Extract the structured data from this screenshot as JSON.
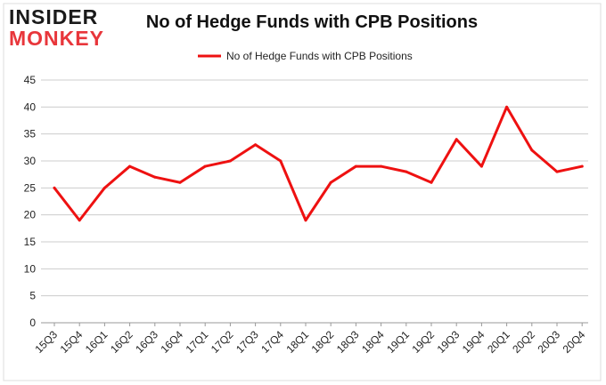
{
  "logo": {
    "line1": "INSIDER",
    "line2": "MONKEY"
  },
  "colors": {
    "series": "#ee1111",
    "grid": "#cccccc",
    "logo_red": "#e8363b"
  },
  "chart_data": {
    "type": "line",
    "title": "No of Hedge Funds with CPB Positions",
    "xlabel": "",
    "ylabel": "",
    "ylim": [
      0,
      45
    ],
    "yticks": [
      0,
      5,
      10,
      15,
      20,
      25,
      30,
      35,
      40,
      45
    ],
    "grid": true,
    "legend_position": "top-center",
    "categories": [
      "15Q3",
      "15Q4",
      "16Q1",
      "16Q2",
      "16Q3",
      "16Q4",
      "17Q1",
      "17Q2",
      "17Q3",
      "17Q4",
      "18Q1",
      "18Q2",
      "18Q3",
      "18Q4",
      "19Q1",
      "19Q2",
      "19Q3",
      "19Q4",
      "20Q1",
      "20Q2",
      "20Q3",
      "20Q4"
    ],
    "series": [
      {
        "name": "No of Hedge Funds with CPB Positions",
        "values": [
          25,
          19,
          25,
          29,
          27,
          26,
          29,
          30,
          33,
          30,
          19,
          26,
          29,
          29,
          28,
          26,
          34,
          29,
          40,
          32,
          28,
          29
        ]
      }
    ]
  }
}
